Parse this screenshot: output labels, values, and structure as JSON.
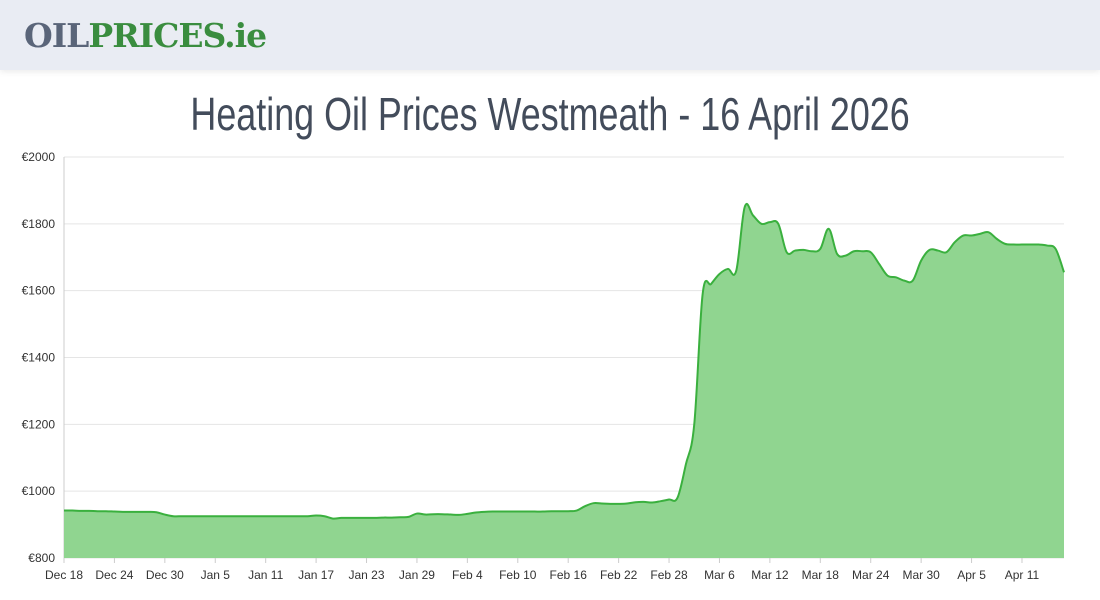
{
  "header": {
    "logo_part1": "OIL",
    "logo_part2": "PRICES.ie"
  },
  "title": "Heating Oil Prices Westmeath - 16 April 2026",
  "colors": {
    "line": "#3ab03e",
    "fill": "#90d590",
    "grid": "#e5e5e5",
    "logo_gray": "#5a6579",
    "logo_green": "#3a8d3f"
  },
  "chart_data": {
    "type": "area",
    "title": "Heating Oil Prices Westmeath - 16 April 2026",
    "xlabel": "",
    "ylabel": "",
    "ylim": [
      800,
      2000
    ],
    "y_ticks": [
      "€800",
      "€1000",
      "€1200",
      "€1400",
      "€1600",
      "€1800",
      "€2000"
    ],
    "y_tick_values": [
      800,
      1000,
      1200,
      1400,
      1600,
      1800,
      2000
    ],
    "x_ticks": [
      "Dec 18",
      "Dec 24",
      "Dec 30",
      "Jan 5",
      "Jan 11",
      "Jan 17",
      "Jan 23",
      "Jan 29",
      "Feb 4",
      "Feb 10",
      "Feb 16",
      "Feb 22",
      "Feb 28",
      "Mar 6",
      "Mar 12",
      "Mar 18",
      "Mar 24",
      "Mar 30",
      "Apr 5",
      "Apr 11"
    ],
    "grid": true,
    "x": [
      "Dec 18",
      "Dec 19",
      "Dec 20",
      "Dec 21",
      "Dec 22",
      "Dec 23",
      "Dec 24",
      "Dec 25",
      "Dec 26",
      "Dec 27",
      "Dec 28",
      "Dec 29",
      "Dec 30",
      "Dec 31",
      "Jan 1",
      "Jan 2",
      "Jan 3",
      "Jan 4",
      "Jan 5",
      "Jan 6",
      "Jan 7",
      "Jan 8",
      "Jan 9",
      "Jan 10",
      "Jan 11",
      "Jan 12",
      "Jan 13",
      "Jan 14",
      "Jan 15",
      "Jan 16",
      "Jan 17",
      "Jan 18",
      "Jan 19",
      "Jan 20",
      "Jan 21",
      "Jan 22",
      "Jan 23",
      "Jan 24",
      "Jan 25",
      "Jan 26",
      "Jan 27",
      "Jan 28",
      "Jan 29",
      "Jan 30",
      "Jan 31",
      "Feb 1",
      "Feb 2",
      "Feb 3",
      "Feb 4",
      "Feb 5",
      "Feb 6",
      "Feb 7",
      "Feb 8",
      "Feb 9",
      "Feb 10",
      "Feb 11",
      "Feb 12",
      "Feb 13",
      "Feb 14",
      "Feb 15",
      "Feb 16",
      "Feb 17",
      "Feb 18",
      "Feb 19",
      "Feb 20",
      "Feb 21",
      "Feb 22",
      "Feb 23",
      "Feb 24",
      "Feb 25",
      "Feb 26",
      "Feb 27",
      "Feb 28",
      "Mar 1",
      "Mar 2",
      "Mar 3",
      "Mar 4",
      "Mar 5",
      "Mar 6",
      "Mar 7",
      "Mar 8",
      "Mar 9",
      "Mar 10",
      "Mar 11",
      "Mar 12",
      "Mar 13",
      "Mar 14",
      "Mar 15",
      "Mar 16",
      "Mar 17",
      "Mar 18",
      "Mar 19",
      "Mar 20",
      "Mar 21",
      "Mar 22",
      "Mar 23",
      "Mar 24",
      "Mar 25",
      "Mar 26",
      "Mar 27",
      "Mar 28",
      "Mar 29",
      "Mar 30",
      "Mar 31",
      "Apr 1",
      "Apr 2",
      "Apr 3",
      "Apr 4",
      "Apr 5",
      "Apr 6",
      "Apr 7",
      "Apr 8",
      "Apr 9",
      "Apr 10",
      "Apr 11",
      "Apr 12",
      "Apr 13",
      "Apr 14",
      "Apr 15",
      "Apr 16"
    ],
    "values": [
      942,
      942,
      941,
      941,
      940,
      940,
      939,
      938,
      938,
      938,
      938,
      937,
      930,
      925,
      925,
      925,
      925,
      925,
      925,
      925,
      925,
      925,
      925,
      925,
      925,
      925,
      925,
      925,
      925,
      925,
      927,
      925,
      918,
      920,
      920,
      920,
      920,
      920,
      921,
      921,
      922,
      923,
      933,
      930,
      931,
      931,
      930,
      929,
      932,
      936,
      938,
      939,
      939,
      939,
      939,
      939,
      939,
      939,
      940,
      940,
      940,
      942,
      955,
      964,
      963,
      962,
      962,
      963,
      967,
      968,
      966,
      970,
      975,
      980,
      1080,
      1200,
      1590,
      1620,
      1650,
      1665,
      1660,
      1850,
      1825,
      1800,
      1805,
      1800,
      1715,
      1720,
      1722,
      1718,
      1725,
      1785,
      1710,
      1705,
      1718,
      1718,
      1715,
      1680,
      1645,
      1640,
      1630,
      1630,
      1690,
      1722,
      1720,
      1715,
      1745,
      1765,
      1765,
      1770,
      1775,
      1755,
      1740,
      1738,
      1738,
      1738,
      1738,
      1735,
      1725,
      1655
    ]
  }
}
